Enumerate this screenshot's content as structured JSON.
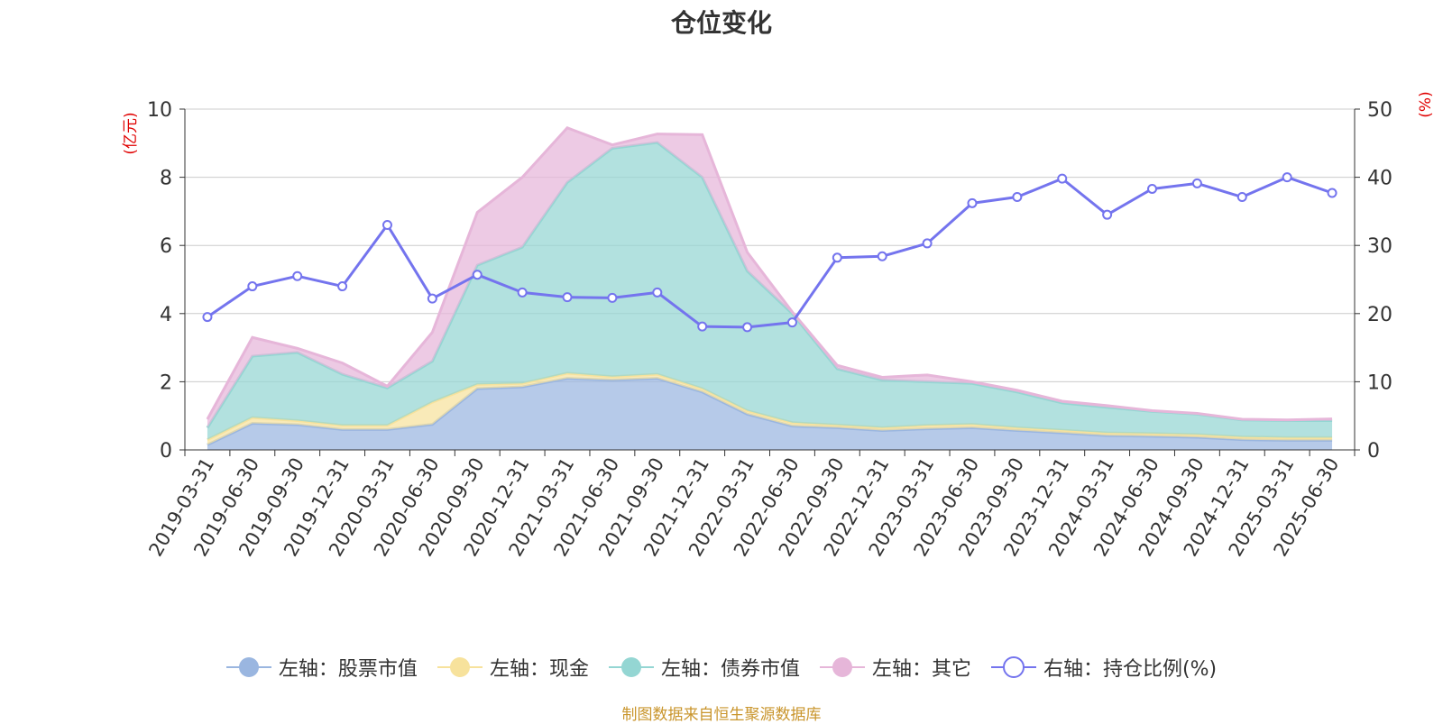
{
  "chart_data": {
    "type": "area",
    "title": "仓位变化",
    "source": "制图数据来自恒生聚源数据库",
    "y_left_label": "(亿元)",
    "y_right_label": "(%)",
    "y_left_range": [
      0,
      10
    ],
    "y_right_range": [
      0,
      50
    ],
    "y_left_ticks": [
      "0",
      "2",
      "4",
      "6",
      "8",
      "10"
    ],
    "y_right_ticks": [
      "0",
      "10",
      "20",
      "30",
      "40",
      "50"
    ],
    "categories": [
      "2019-03-31",
      "2019-06-30",
      "2019-09-30",
      "2019-12-31",
      "2020-03-31",
      "2020-06-30",
      "2020-09-30",
      "2020-12-31",
      "2021-03-31",
      "2021-06-30",
      "2021-09-30",
      "2021-12-31",
      "2022-03-31",
      "2022-06-30",
      "2022-09-30",
      "2022-12-31",
      "2023-03-31",
      "2023-06-30",
      "2023-09-30",
      "2023-12-31",
      "2024-03-31",
      "2024-06-30",
      "2024-09-30",
      "2024-12-31",
      "2025-03-31",
      "2025-06-30"
    ],
    "series": [
      {
        "name": "左轴：股票市值",
        "axis": "left",
        "stack": true,
        "color": "#9ab6e0",
        "values": [
          0.15,
          0.78,
          0.74,
          0.6,
          0.6,
          0.75,
          1.8,
          1.85,
          2.1,
          2.05,
          2.1,
          1.7,
          1.05,
          0.7,
          0.65,
          0.57,
          0.62,
          0.65,
          0.57,
          0.5,
          0.42,
          0.4,
          0.37,
          0.3,
          0.28,
          0.28
        ]
      },
      {
        "name": "左轴：现金",
        "axis": "left",
        "stack": true,
        "color": "#f7e29c",
        "values": [
          0.15,
          0.17,
          0.12,
          0.12,
          0.12,
          0.65,
          0.12,
          0.1,
          0.15,
          0.1,
          0.12,
          0.1,
          0.1,
          0.1,
          0.08,
          0.08,
          0.1,
          0.1,
          0.08,
          0.08,
          0.08,
          0.08,
          0.08,
          0.08,
          0.08,
          0.08
        ]
      },
      {
        "name": "左轴：债券市值",
        "axis": "left",
        "stack": true,
        "color": "#94d6d3",
        "values": [
          0.35,
          1.8,
          2.0,
          1.5,
          1.1,
          1.2,
          3.5,
          4.0,
          5.6,
          6.7,
          6.8,
          6.2,
          4.1,
          3.2,
          1.65,
          1.4,
          1.28,
          1.2,
          1.05,
          0.8,
          0.75,
          0.65,
          0.6,
          0.5,
          0.5,
          0.5
        ]
      },
      {
        "name": "左轴：其它",
        "axis": "left",
        "stack": true,
        "color": "#e6b6d9",
        "values": [
          0.25,
          0.55,
          0.12,
          0.33,
          0.05,
          0.85,
          1.55,
          2.05,
          1.6,
          0.1,
          0.25,
          1.25,
          0.55,
          0.05,
          0.1,
          0.08,
          0.2,
          0.05,
          0.05,
          0.05,
          0.05,
          0.02,
          0.02,
          0.02,
          0.02,
          0.05
        ]
      },
      {
        "name": "右轴：持仓比例(%)",
        "axis": "right",
        "stack": false,
        "color": "#7474ee",
        "values": [
          19.5,
          24,
          25.5,
          24,
          33,
          22.2,
          25.7,
          23.1,
          22.4,
          22.3,
          23.1,
          18.1,
          18.0,
          18.7,
          28.2,
          28.4,
          30.3,
          36.2,
          37.1,
          39.8,
          34.5,
          38.3,
          39.1,
          37.1,
          40.0,
          37.7
        ]
      }
    ],
    "legend": [
      "左轴：股票市值",
      "左轴：现金",
      "左轴：债券市值",
      "左轴：其它",
      "右轴：持仓比例(%)"
    ]
  }
}
